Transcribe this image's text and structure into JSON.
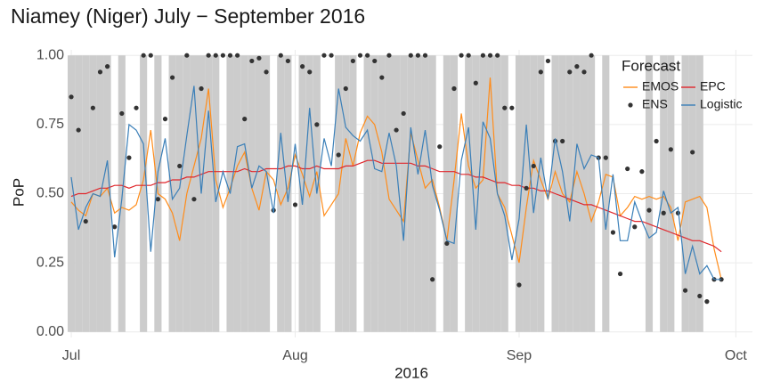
{
  "chart_data": {
    "type": "line",
    "title": "Niamey (Niger) July − September 2016",
    "xlabel": "2016",
    "ylabel": "PoP",
    "legend_title": "Forecast",
    "legend": "top-right",
    "grid": true,
    "shade_color": "#cccccc",
    "x": [
      0,
      1,
      2,
      3,
      4,
      5,
      6,
      7,
      8,
      9,
      10,
      11,
      12,
      13,
      14,
      15,
      16,
      17,
      18,
      19,
      20,
      21,
      22,
      23,
      24,
      25,
      26,
      27,
      28,
      29,
      30,
      31,
      32,
      33,
      34,
      35,
      36,
      37,
      38,
      39,
      40,
      41,
      42,
      43,
      44,
      45,
      46,
      47,
      48,
      49,
      50,
      51,
      52,
      53,
      54,
      55,
      56,
      57,
      58,
      59,
      60,
      61,
      62,
      63,
      64,
      65,
      66,
      67,
      68,
      69,
      70,
      71,
      72,
      73,
      74,
      75,
      76,
      77,
      78,
      79,
      80,
      81,
      82,
      83,
      84,
      85,
      86,
      87,
      88,
      89,
      90
    ],
    "observed": [
      1,
      1,
      1,
      1,
      1,
      1,
      0,
      1,
      0,
      0,
      1,
      0,
      1,
      0,
      1,
      1,
      1,
      1,
      1,
      1,
      1,
      0,
      1,
      1,
      1,
      1,
      1,
      1,
      0,
      1,
      1,
      0,
      1,
      1,
      1,
      0,
      0,
      1,
      1,
      1,
      0,
      1,
      1,
      1,
      1,
      1,
      1,
      1,
      1,
      1,
      1,
      0,
      1,
      1,
      0,
      1,
      1,
      1,
      1,
      1,
      1,
      0,
      1,
      1,
      1,
      1,
      0,
      1,
      1,
      1,
      1,
      1,
      1,
      0,
      1,
      0,
      0,
      0,
      0,
      0,
      1,
      0,
      1,
      1,
      0,
      1,
      1,
      1,
      0,
      0,
      0
    ],
    "series": [
      {
        "name": "EMOS",
        "style": "line",
        "color": "#ff8c1a",
        "values": [
          0.47,
          0.44,
          0.42,
          0.5,
          0.49,
          0.52,
          0.43,
          0.45,
          0.44,
          0.46,
          0.55,
          0.73,
          0.5,
          0.48,
          0.43,
          0.33,
          0.5,
          0.6,
          0.7,
          0.88,
          0.55,
          0.45,
          0.52,
          0.6,
          0.65,
          0.52,
          0.44,
          0.58,
          0.55,
          0.46,
          0.52,
          0.64,
          0.57,
          0.49,
          0.58,
          0.42,
          0.46,
          0.5,
          0.7,
          0.6,
          0.72,
          0.78,
          0.75,
          0.65,
          0.48,
          0.44,
          0.4,
          0.72,
          0.62,
          0.52,
          0.55,
          0.45,
          0.33,
          0.55,
          0.79,
          0.6,
          0.52,
          0.55,
          0.92,
          0.5,
          0.45,
          0.35,
          0.25,
          0.45,
          0.62,
          0.55,
          0.48,
          0.58,
          0.5,
          0.47,
          0.58,
          0.5,
          0.4,
          0.47,
          0.57,
          0.56,
          0.42,
          0.45,
          0.49,
          0.48,
          0.49,
          0.48,
          0.49,
          0.45,
          0.33,
          0.47,
          0.48,
          0.49,
          0.45,
          0.3,
          0.19
        ]
      },
      {
        "name": "EPC",
        "style": "line",
        "color": "#e0262b",
        "values": [
          0.49,
          0.5,
          0.5,
          0.51,
          0.52,
          0.52,
          0.53,
          0.53,
          0.52,
          0.53,
          0.53,
          0.53,
          0.54,
          0.54,
          0.55,
          0.55,
          0.56,
          0.56,
          0.57,
          0.58,
          0.58,
          0.58,
          0.58,
          0.58,
          0.59,
          0.58,
          0.58,
          0.59,
          0.59,
          0.59,
          0.6,
          0.6,
          0.59,
          0.59,
          0.6,
          0.59,
          0.59,
          0.59,
          0.6,
          0.6,
          0.61,
          0.62,
          0.62,
          0.61,
          0.61,
          0.61,
          0.61,
          0.61,
          0.6,
          0.6,
          0.59,
          0.58,
          0.58,
          0.58,
          0.57,
          0.57,
          0.56,
          0.56,
          0.55,
          0.54,
          0.54,
          0.53,
          0.53,
          0.52,
          0.52,
          0.51,
          0.51,
          0.5,
          0.49,
          0.48,
          0.47,
          0.46,
          0.46,
          0.45,
          0.44,
          0.43,
          0.42,
          0.41,
          0.4,
          0.4,
          0.39,
          0.38,
          0.37,
          0.36,
          0.35,
          0.34,
          0.33,
          0.33,
          0.32,
          0.31,
          0.29
        ]
      },
      {
        "name": "ENS",
        "style": "point",
        "color": "#333333",
        "values": [
          0.85,
          0.73,
          0.4,
          0.81,
          0.94,
          0.96,
          0.38,
          0.79,
          0.63,
          0.81,
          1.0,
          1.0,
          0.48,
          0.77,
          0.92,
          0.6,
          1.0,
          0.48,
          0.88,
          1.0,
          1.0,
          1.0,
          1.0,
          1.0,
          0.77,
          0.98,
          0.99,
          0.94,
          0.44,
          1.0,
          0.98,
          0.46,
          0.96,
          0.94,
          0.75,
          1.0,
          1.0,
          0.64,
          0.88,
          0.98,
          1.0,
          1.0,
          0.98,
          0.92,
          1.0,
          0.73,
          0.79,
          1.0,
          1.0,
          1.0,
          0.19,
          0.67,
          0.32,
          0.88,
          1.0,
          1.0,
          0.9,
          1.0,
          1.0,
          1.0,
          0.81,
          0.81,
          0.17,
          0.52,
          0.6,
          0.94,
          0.98,
          0.69,
          0.69,
          0.94,
          0.96,
          0.94,
          1.0,
          0.63,
          0.63,
          0.36,
          0.21,
          0.59,
          0.38,
          0.58,
          0.44,
          0.69,
          0.43,
          0.66,
          0.43,
          0.15,
          0.65,
          0.13,
          0.11,
          0.19,
          0.19
        ]
      },
      {
        "name": "Logistic",
        "style": "line",
        "color": "#3a7fb8",
        "values": [
          0.56,
          0.37,
          0.45,
          0.5,
          0.49,
          0.62,
          0.27,
          0.48,
          0.75,
          0.73,
          0.68,
          0.29,
          0.58,
          0.7,
          0.48,
          0.52,
          0.71,
          0.89,
          0.5,
          0.8,
          0.47,
          0.58,
          0.5,
          0.67,
          0.68,
          0.52,
          0.6,
          0.58,
          0.43,
          0.72,
          0.47,
          0.68,
          0.46,
          0.81,
          0.5,
          0.7,
          0.6,
          0.88,
          0.74,
          0.71,
          0.69,
          0.73,
          0.59,
          0.58,
          0.72,
          0.6,
          0.33,
          0.74,
          0.57,
          0.73,
          0.53,
          0.44,
          0.33,
          0.32,
          0.62,
          0.74,
          0.37,
          0.76,
          0.7,
          0.5,
          0.42,
          0.26,
          0.41,
          0.75,
          0.43,
          0.63,
          0.48,
          0.7,
          0.58,
          0.4,
          0.68,
          0.59,
          0.64,
          0.63,
          0.37,
          0.57,
          0.33,
          0.33,
          0.47,
          0.4,
          0.34,
          0.36,
          0.51,
          0.43,
          0.45,
          0.21,
          0.31,
          0.21,
          0.24,
          0.19,
          0.19
        ]
      }
    ],
    "xlim": [
      -0.25,
      94.3
    ],
    "xticks": [
      {
        "value": 0,
        "label": "Jul"
      },
      {
        "value": 31,
        "label": "Aug"
      },
      {
        "value": 62,
        "label": "Sep"
      },
      {
        "value": 92,
        "label": "Oct"
      }
    ],
    "ylim": [
      -0.02,
      1.02
    ],
    "yticks": [
      {
        "value": 0,
        "label": "0.00"
      },
      {
        "value": 0.25,
        "label": "0.25"
      },
      {
        "value": 0.5,
        "label": "0.50"
      },
      {
        "value": 0.75,
        "label": "0.75"
      },
      {
        "value": 1,
        "label": "1.00"
      }
    ]
  }
}
